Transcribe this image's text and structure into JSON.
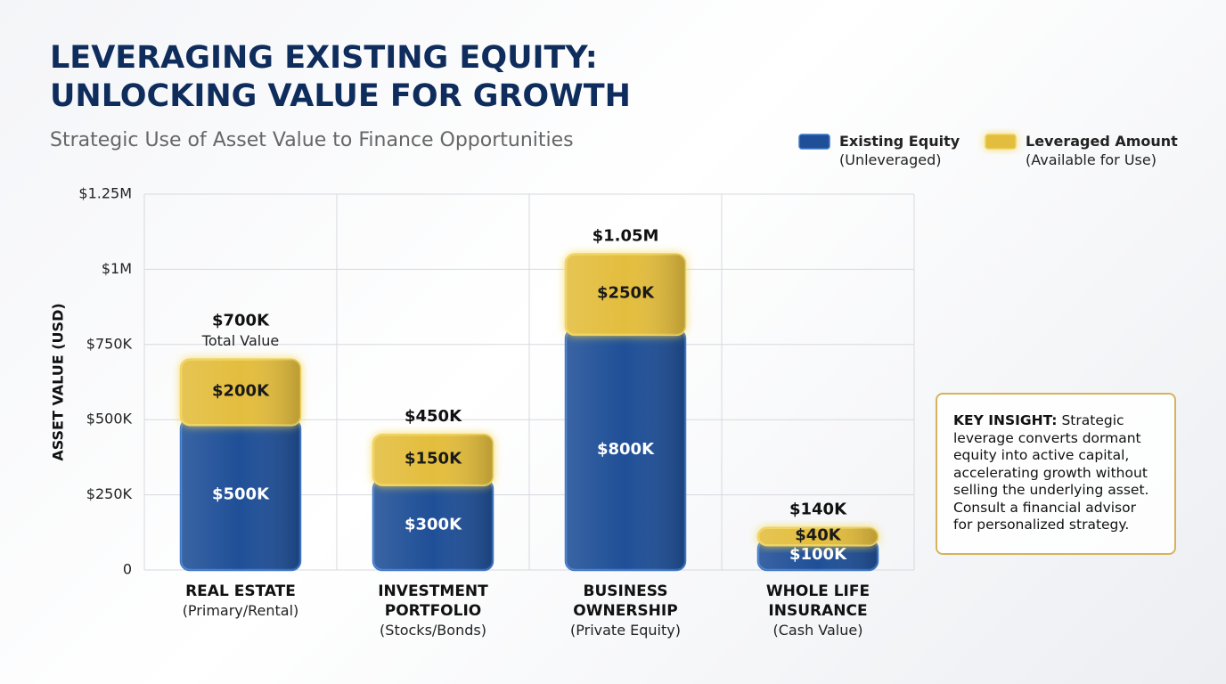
{
  "chart_data": {
    "type": "stacked_bar",
    "title": "LEVERAGING EXISTING EQUITY: UNLOCKING VALUE FOR GROWTH",
    "subtitle": "Strategic Use of Asset Value to Finance Opportunities",
    "y_label": "ASSET VALUE (USD)",
    "categories": [
      "REAL ESTATE",
      "INVESTMENT PORTFOLIO",
      "BUSINESS OWNERSHIP",
      "WHOLE LIFE INSURANCE"
    ],
    "category_notes": [
      "(Primary/Rental)",
      "(Stocks/Bonds)",
      "(Private Equity)",
      "(Cash Value)"
    ],
    "series": [
      {
        "name": "Existing Equity",
        "note": "(Unleveraged)",
        "color": "#1f4f97",
        "values": [
          500000,
          300000,
          800000,
          100000
        ],
        "value_labels": [
          "$500K",
          "$300K",
          "$800K",
          "$100K"
        ]
      },
      {
        "name": "Leveraged Amount",
        "note": "(Available for Use)",
        "color": "#e3bd3d",
        "values": [
          200000,
          150000,
          250000,
          40000
        ],
        "value_labels": [
          "$200K",
          "$150K",
          "$250K",
          "$40K"
        ]
      }
    ],
    "totals": [
      700000,
      450000,
      1050000,
      140000
    ],
    "total_labels": [
      "$700K",
      "$450K",
      "$1.05M",
      "$140K"
    ],
    "total_note": "Total Value",
    "ylim": [
      0,
      1250000
    ],
    "yticks": [
      0,
      {
        "value": 250000,
        "label": "$250K"
      },
      {
        "value": 500000,
        "label": "$500K"
      },
      {
        "value": 750000,
        "label": "$750K"
      },
      {
        "value": 1000000,
        "label": "$1M"
      },
      {
        "value": 1250000,
        "label": "$1.25M"
      }
    ],
    "grid": true,
    "insight": {
      "label": "KEY INSIGHT:",
      "text": "Strategic leverage converts dormant equity into active capital, accelerating growth without selling the underlying asset. Consult a financial advisor for personalized strategy."
    }
  }
}
